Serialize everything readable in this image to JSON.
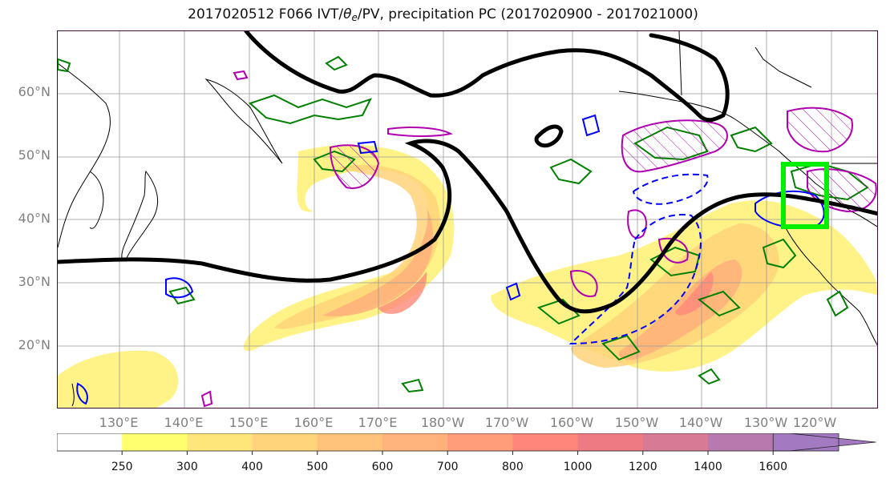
{
  "title": {
    "prefix": "2017020512 F066 IVT/",
    "theta": "θ",
    "theta_sub": "e",
    "suffix": "/PV, precipitation PC (2017020900 - 2017021000)"
  },
  "lat_labels": [
    "60°N",
    "50°N",
    "40°N",
    "30°N",
    "20°N"
  ],
  "lon_labels": [
    "130°E",
    "140°E",
    "150°E",
    "160°E",
    "170°E",
    "180°W",
    "170°W",
    "160°W",
    "150°W",
    "140°W",
    "130°W",
    "120°W"
  ],
  "colorbar": {
    "levels": [
      "250",
      "300",
      "400",
      "500",
      "600",
      "700",
      "800",
      "1000",
      "1200",
      "1400",
      "1600"
    ],
    "colors": [
      "#ffffff",
      "#ffff70",
      "#ffe67a",
      "#ffd47a",
      "#ffc27a",
      "#ffb27a",
      "#ff9c7a",
      "#ff857a",
      "#ee7a84",
      "#d67a96",
      "#b87aae",
      "#a37ac2"
    ]
  },
  "map": {
    "extent_lon": [
      120,
      245
    ],
    "extent_lat": [
      10,
      70
    ],
    "colors": {
      "ivt_light": "#fff27a",
      "ivt_mid": "#ffd27a",
      "ivt_orange": "#ffb07a",
      "ivt_red": "#ff887a",
      "pv_contour": "#000000",
      "theta_e": "#008000",
      "precip_pos": "#b000b0",
      "precip_neg": "#0000ff",
      "target_box": "#00ee00"
    }
  }
}
